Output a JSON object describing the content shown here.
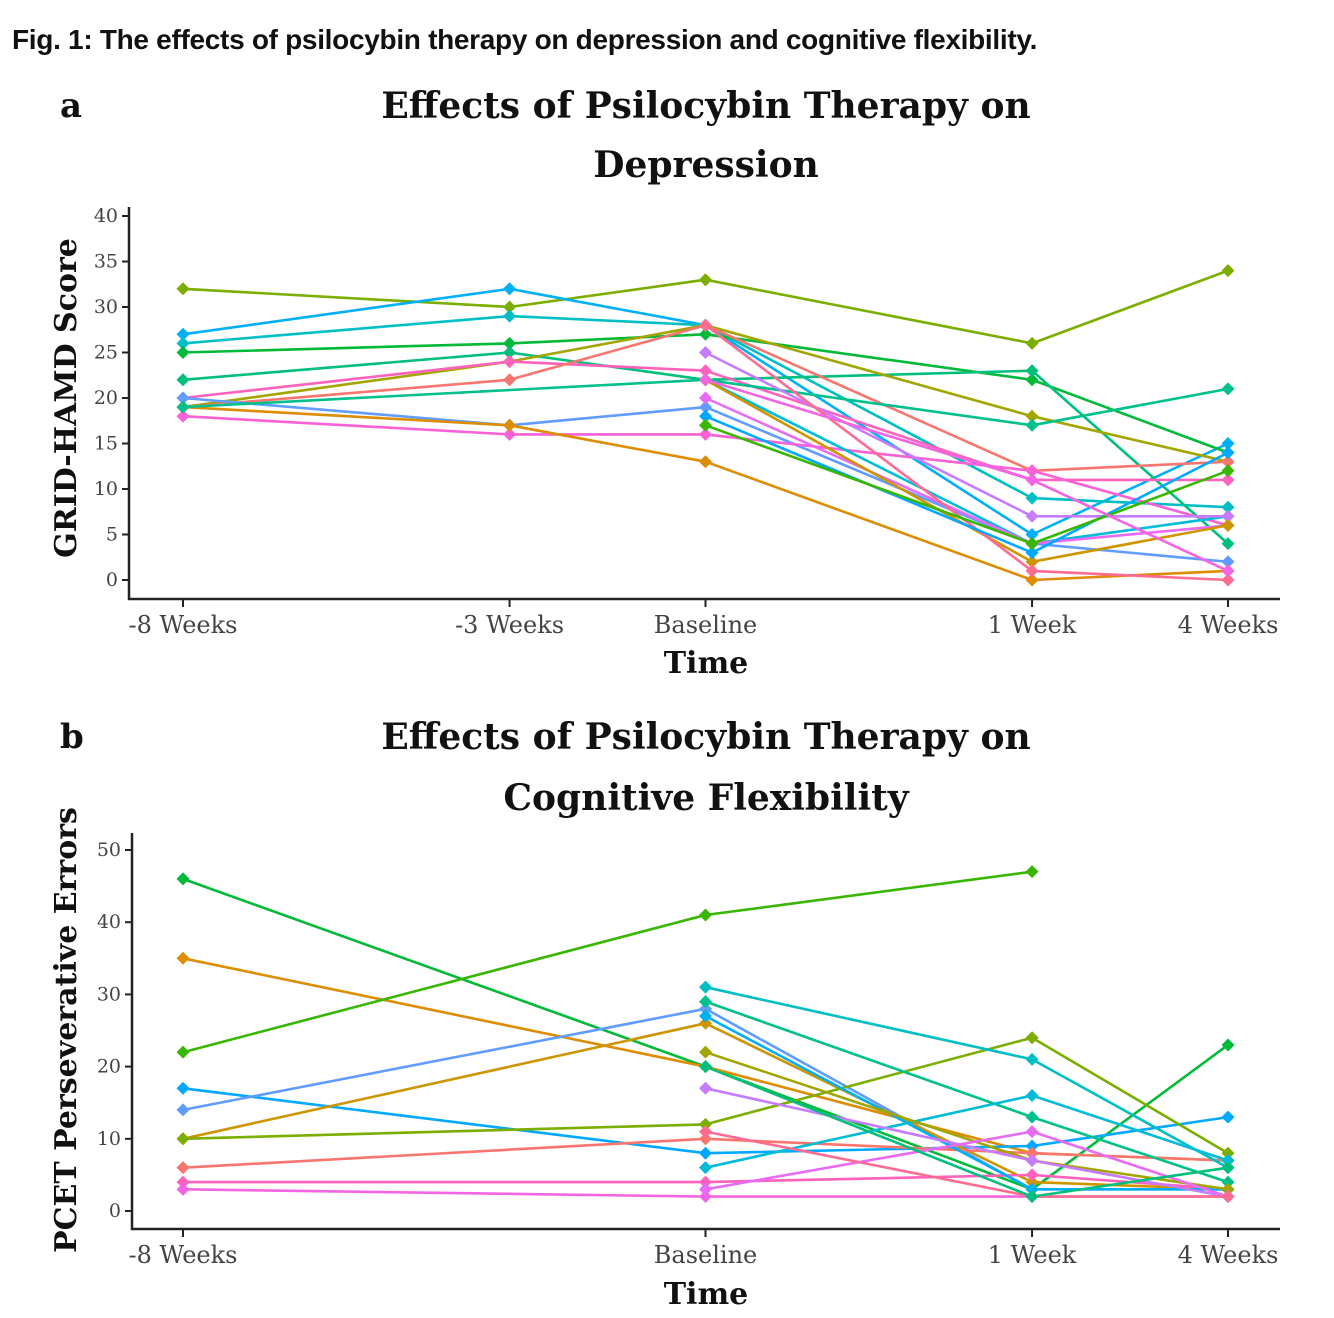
{
  "caption": "Fig. 1: The effects of psilocybin therapy on depression and cognitive flexibility.",
  "chart_data": [
    {
      "panel": "a",
      "type": "line",
      "title": [
        "Effects of Psilocybin Therapy on",
        "Depression"
      ],
      "xlabel": "Time",
      "ylabel": "GRID-HAMD Score",
      "categories": [
        "-8 Weeks",
        "-3 Weeks",
        "Baseline",
        "1 Week",
        "4 Weeks"
      ],
      "x": [
        -8,
        -3,
        0,
        5,
        8
      ],
      "ylim": [
        0,
        40
      ],
      "yticks": [
        0,
        5,
        10,
        15,
        20,
        25,
        30,
        35,
        40
      ],
      "grid": false,
      "series": [
        {
          "color": "#7cae00",
          "values": [
            32,
            30,
            33,
            26,
            34
          ]
        },
        {
          "color": "#00b0f6",
          "values": [
            27,
            32,
            28,
            5,
            15
          ]
        },
        {
          "color": "#00bfc4",
          "values": [
            26,
            29,
            28,
            9,
            8
          ]
        },
        {
          "color": "#00ba38",
          "values": [
            25,
            26,
            27,
            22,
            14
          ]
        },
        {
          "color": "#00bf7d",
          "values": [
            22,
            25,
            22,
            23,
            4
          ]
        },
        {
          "color": "#a3a500",
          "values": [
            19,
            24,
            28,
            18,
            13
          ]
        },
        {
          "color": "#ff62bc",
          "values": [
            20,
            24,
            23,
            11,
            11
          ]
        },
        {
          "color": "#f8766d",
          "values": [
            19,
            22,
            28,
            12,
            13
          ]
        },
        {
          "color": "#619cff",
          "values": [
            20,
            17,
            19,
            4,
            2
          ]
        },
        {
          "color": "#fb61d7",
          "values": [
            18,
            16,
            16,
            12,
            6
          ]
        },
        {
          "color": "#de8c00",
          "values": [
            19,
            17,
            13,
            0,
            1
          ]
        },
        {
          "color": "#00c08b",
          "values": [
            19,
            null,
            22,
            17,
            21
          ]
        },
        {
          "color": "#00bcd8",
          "values": [
            null,
            null,
            22,
            4,
            7
          ]
        },
        {
          "color": "#c77cff",
          "values": [
            null,
            null,
            25,
            7,
            7
          ]
        },
        {
          "color": "#e76bf3",
          "values": [
            null,
            null,
            20,
            4,
            6
          ]
        },
        {
          "color": "#cd9600",
          "values": [
            null,
            null,
            22,
            2,
            6
          ]
        },
        {
          "color": "#ff6c91",
          "values": [
            null,
            null,
            28,
            1,
            0
          ]
        },
        {
          "color": "#00a9ff",
          "values": [
            null,
            null,
            18,
            3,
            14
          ]
        },
        {
          "color": "#39b600",
          "values": [
            null,
            null,
            17,
            4,
            12
          ]
        },
        {
          "color": "#f564e3",
          "values": [
            null,
            null,
            22,
            11,
            1
          ]
        }
      ]
    },
    {
      "panel": "b",
      "type": "line",
      "title": [
        "Effects of Psilocybin Therapy on",
        "Cognitive Flexibility"
      ],
      "xlabel": "Time",
      "ylabel": "PCET Perseverative Errors",
      "categories": [
        "-8 Weeks",
        "Baseline",
        "1 Week",
        "4 Weeks"
      ],
      "x": [
        -8,
        0,
        5,
        8
      ],
      "ylim": [
        0,
        50
      ],
      "yticks": [
        0,
        10,
        20,
        30,
        40,
        50
      ],
      "grid": false,
      "series": [
        {
          "color": "#00ba38",
          "values": [
            46,
            20,
            3,
            23
          ]
        },
        {
          "color": "#de8c00",
          "values": [
            35,
            20,
            8,
            7
          ]
        },
        {
          "color": "#39b600",
          "values": [
            22,
            41,
            47,
            null
          ]
        },
        {
          "color": "#00a9ff",
          "values": [
            17,
            8,
            9,
            13
          ]
        },
        {
          "color": "#619cff",
          "values": [
            14,
            28,
            3,
            3
          ]
        },
        {
          "color": "#cd9600",
          "values": [
            10,
            26,
            4,
            3
          ]
        },
        {
          "color": "#7cae00",
          "values": [
            10,
            12,
            24,
            8
          ]
        },
        {
          "color": "#f8766d",
          "values": [
            6,
            10,
            8,
            7
          ]
        },
        {
          "color": "#ff62bc",
          "values": [
            4,
            4,
            5,
            3
          ]
        },
        {
          "color": "#f564e3",
          "values": [
            3,
            2,
            2,
            2
          ]
        },
        {
          "color": "#00bfc4",
          "values": [
            null,
            31,
            21,
            6
          ]
        },
        {
          "color": "#00c08b",
          "values": [
            null,
            29,
            13,
            4
          ]
        },
        {
          "color": "#00b0f6",
          "values": [
            null,
            27,
            3,
            3
          ]
        },
        {
          "color": "#00bcd8",
          "values": [
            null,
            6,
            16,
            7
          ]
        },
        {
          "color": "#a3a500",
          "values": [
            null,
            22,
            7,
            3
          ]
        },
        {
          "color": "#c77cff",
          "values": [
            null,
            17,
            7,
            2
          ]
        },
        {
          "color": "#e76bf3",
          "values": [
            null,
            3,
            11,
            2
          ]
        },
        {
          "color": "#ff6c91",
          "values": [
            null,
            11,
            2,
            2
          ]
        },
        {
          "color": "#00bf7d",
          "values": [
            null,
            20,
            2,
            6
          ]
        }
      ]
    }
  ]
}
